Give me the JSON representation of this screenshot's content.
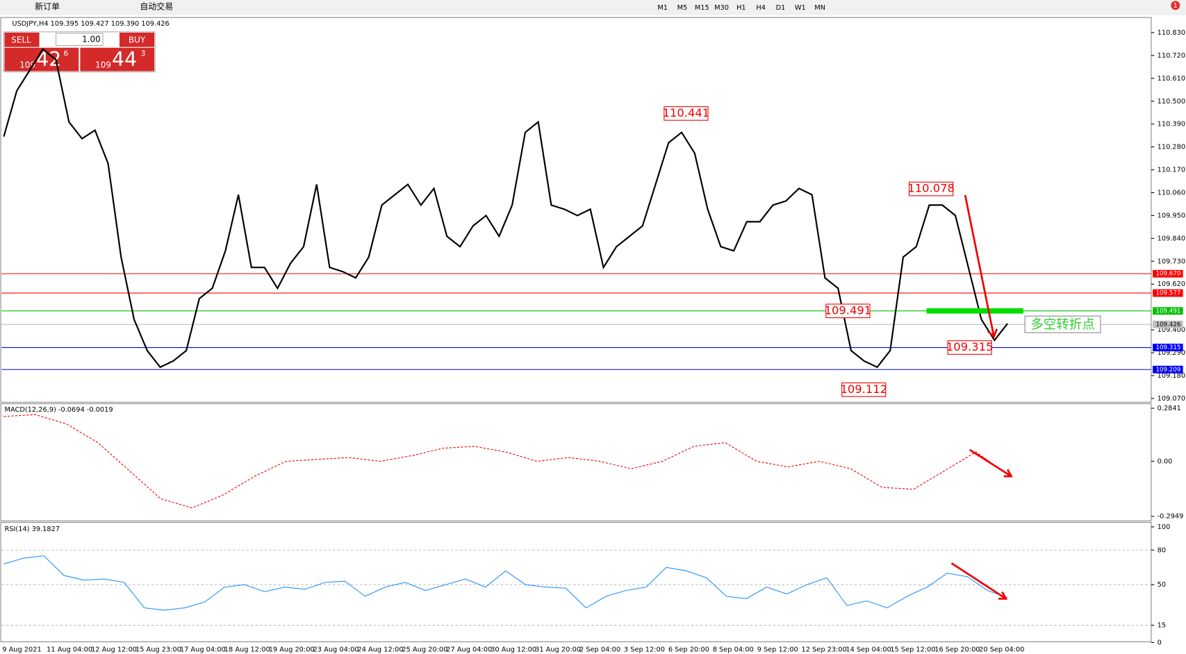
{
  "toolbar": {
    "new_order": "新订单",
    "auto_trade": "自动交易",
    "timeframes": [
      "M1",
      "M5",
      "M15",
      "M30",
      "H1",
      "H4",
      "D1",
      "W1",
      "MN"
    ],
    "notifications": "1"
  },
  "trade_panel": {
    "sell": "SELL",
    "buy": "BUY",
    "lot": "1.00",
    "sell_price": {
      "big": "109",
      "main": "42",
      "sup": "6"
    },
    "buy_price": {
      "big": "109",
      "main": "44",
      "sup": "3"
    }
  },
  "chart_info": "USDJPY,H4  109.395 109.427 109.390 109.426",
  "price_axis": {
    "ylim": [
      109.07,
      110.83
    ],
    "ticks": [
      {
        "value": 110.83,
        "label": "110.830"
      },
      {
        "value": 110.72,
        "label": "110.720"
      },
      {
        "value": 110.61,
        "label": "110.610"
      },
      {
        "value": 110.5,
        "label": "110.500"
      },
      {
        "value": 110.39,
        "label": "110.390"
      },
      {
        "value": 110.28,
        "label": "110.280"
      },
      {
        "value": 110.17,
        "label": "110.170"
      },
      {
        "value": 110.06,
        "label": "110.060"
      },
      {
        "value": 109.95,
        "label": "109.950"
      },
      {
        "value": 109.84,
        "label": "109.840"
      },
      {
        "value": 109.73,
        "label": "109.730"
      },
      {
        "value": 109.62,
        "label": "109.620"
      },
      {
        "value": 109.4,
        "label": "109.400"
      },
      {
        "value": 109.29,
        "label": "109.290"
      },
      {
        "value": 109.18,
        "label": "109.180"
      },
      {
        "value": 109.07,
        "label": "109.070"
      }
    ]
  },
  "levels": [
    {
      "value": 109.67,
      "label": "109.670",
      "color": "#ff0000"
    },
    {
      "value": 109.577,
      "label": "109.577",
      "color": "#ff0000"
    },
    {
      "value": 109.491,
      "label": "109.491",
      "color": "#00c000"
    },
    {
      "value": 109.426,
      "label": "109.426",
      "color": "#c0c0c0"
    },
    {
      "value": 109.315,
      "label": "109.315",
      "color": "#0000ff"
    },
    {
      "value": 109.209,
      "label": "109.209",
      "color": "#0000ff"
    }
  ],
  "annotations": [
    110.441,
    110.078,
    109.491,
    109.315,
    109.112
  ],
  "pivot_label": "多空转折点",
  "price_line": [
    110.33,
    110.55,
    110.65,
    110.75,
    110.7,
    110.4,
    110.32,
    110.36,
    110.2,
    109.75,
    109.45,
    109.3,
    109.22,
    109.25,
    109.3,
    109.55,
    109.6,
    109.78,
    110.05,
    109.7,
    109.7,
    109.6,
    109.72,
    109.8,
    110.1,
    109.7,
    109.68,
    109.65,
    109.75,
    110.0,
    110.05,
    110.1,
    110.0,
    110.08,
    109.85,
    109.8,
    109.9,
    109.95,
    109.85,
    110.0,
    110.35,
    110.4,
    110.0,
    109.98,
    109.95,
    109.98,
    109.7,
    109.8,
    109.85,
    109.9,
    110.1,
    110.3,
    110.35,
    110.25,
    109.98,
    109.8,
    109.78,
    109.92,
    109.92,
    110.0,
    110.02,
    110.08,
    110.05,
    109.65,
    109.6,
    109.3,
    109.25,
    109.22,
    109.3,
    109.75,
    109.8,
    110.0,
    110.0,
    109.95,
    109.7,
    109.45,
    109.35,
    109.43
  ],
  "macd": {
    "label": "MACD(12,26,9) -0.0694 -0.0019",
    "ylim": [
      -0.2949,
      0.2841
    ],
    "ticks": [
      0.2841,
      {
        "value": 0,
        "label": "0.00"
      },
      -0.2949
    ],
    "signal": [
      0.24,
      0.25,
      0.2,
      0.1,
      -0.05,
      -0.2,
      -0.25,
      -0.18,
      -0.08,
      0.0,
      0.01,
      0.02,
      0.0,
      0.03,
      0.07,
      0.08,
      0.05,
      0.0,
      0.02,
      0.0,
      -0.04,
      0.0,
      0.08,
      0.1,
      0.0,
      -0.03,
      0.0,
      -0.04,
      -0.14,
      -0.15,
      -0.05,
      0.05,
      -0.07
    ]
  },
  "rsi": {
    "label": "RSI(14) 39.1827",
    "ylim": [
      0,
      100
    ],
    "ticks": [
      100,
      80,
      50,
      15,
      0
    ],
    "values": [
      68,
      73,
      75,
      58,
      54,
      55,
      52,
      30,
      28,
      30,
      35,
      48,
      50,
      44,
      48,
      46,
      52,
      53,
      40,
      48,
      52,
      45,
      50,
      55,
      48,
      62,
      50,
      48,
      47,
      30,
      40,
      45,
      48,
      65,
      62,
      56,
      40,
      38,
      48,
      42,
      50,
      56,
      32,
      36,
      30,
      40,
      48,
      60,
      57,
      45,
      39
    ]
  },
  "dates": [
    "9 Aug 2021",
    "11 Aug 04:00",
    "12 Aug 12:00",
    "15 Aug 23:00",
    "17 Aug 04:00",
    "18 Aug 12:00",
    "19 Aug 20:00",
    "23 Aug 04:00",
    "24 Aug 12:00",
    "25 Aug 20:00",
    "27 Aug 04:00",
    "30 Aug 12:00",
    "31 Aug 20:00",
    "2 Sep 04:00",
    "3 Sep 12:00",
    "6 Sep 20:00",
    "8 Sep 04:00",
    "9 Sep 12:00",
    "12 Sep 23:00",
    "14 Sep 04:00",
    "15 Sep 12:00",
    "16 Sep 20:00",
    "20 Sep 04:00"
  ]
}
